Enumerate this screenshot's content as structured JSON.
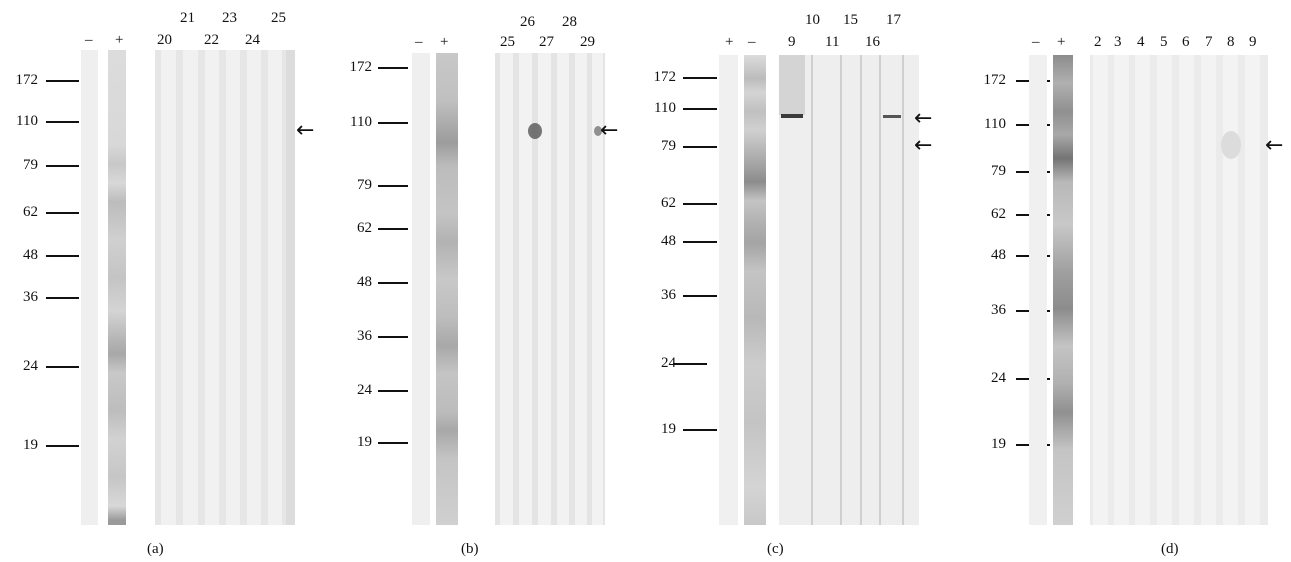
{
  "panels": [
    {
      "caption": "(a)",
      "control_labels": [
        "–",
        "+"
      ],
      "lane_labels_top": [
        "21",
        "23",
        "25"
      ],
      "lane_labels_bottom": [
        "20",
        "22",
        "24"
      ],
      "mw_markers": [
        "172",
        "110",
        "79",
        "62",
        "48",
        "36",
        "24",
        "19"
      ],
      "arrows": [
        "←"
      ]
    },
    {
      "caption": "(b)",
      "control_labels": [
        "–",
        "+"
      ],
      "lane_labels_top": [
        "26",
        "28"
      ],
      "lane_labels_bottom": [
        "25",
        "27",
        "29"
      ],
      "mw_markers": [
        "172",
        "110",
        "79",
        "62",
        "48",
        "36",
        "24",
        "19"
      ],
      "arrows": [
        "←"
      ]
    },
    {
      "caption": "(c)",
      "control_labels": [
        "+",
        "–"
      ],
      "lane_labels_top": [
        "10",
        "15",
        "17"
      ],
      "lane_labels_bottom": [
        "9",
        "11",
        "16"
      ],
      "mw_markers": [
        "172",
        "110",
        "79",
        "62",
        "48",
        "36",
        "24",
        "19"
      ],
      "arrows": [
        "←",
        "←"
      ]
    },
    {
      "caption": "(d)",
      "control_labels": [
        "–",
        "+"
      ],
      "lane_labels_top": [],
      "lane_labels_bottom": [
        "2",
        "3",
        "4",
        "5",
        "6",
        "7",
        "8",
        "9"
      ],
      "mw_markers": [
        "172",
        "110",
        "79",
        "62",
        "48",
        "36",
        "24",
        "19"
      ],
      "arrows": [
        "←"
      ]
    }
  ]
}
